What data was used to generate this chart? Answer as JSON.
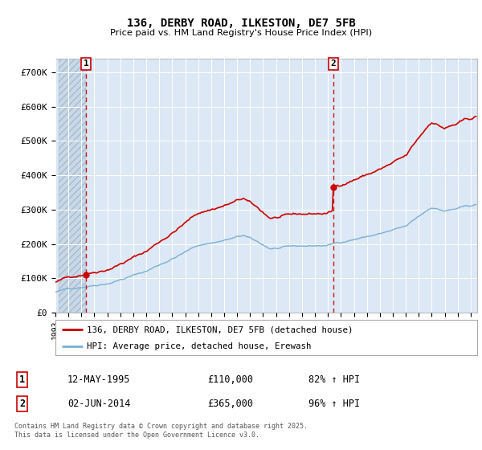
{
  "title": "136, DERBY ROAD, ILKESTON, DE7 5FB",
  "subtitle": "Price paid vs. HM Land Registry's House Price Index (HPI)",
  "legend_line1": "136, DERBY ROAD, ILKESTON, DE7 5FB (detached house)",
  "legend_line2": "HPI: Average price, detached house, Erewash",
  "annotation1_label": "1",
  "annotation1_date": "12-MAY-1995",
  "annotation1_price": "£110,000",
  "annotation1_hpi": "82% ↑ HPI",
  "annotation2_label": "2",
  "annotation2_date": "02-JUN-2014",
  "annotation2_price": "£365,000",
  "annotation2_hpi": "96% ↑ HPI",
  "footer": "Contains HM Land Registry data © Crown copyright and database right 2025.\nThis data is licensed under the Open Government Licence v3.0.",
  "sale1_year": 1995.36,
  "sale1_price": 110000,
  "sale2_year": 2014.42,
  "sale2_price": 365000,
  "property_color": "#cc0000",
  "hpi_color": "#7bafd4",
  "dashed_line_color": "#cc0000",
  "background_plot": "#dce8f5",
  "ylim": [
    0,
    740000
  ],
  "xlim_start": 1993.25,
  "xlim_end": 2025.5
}
